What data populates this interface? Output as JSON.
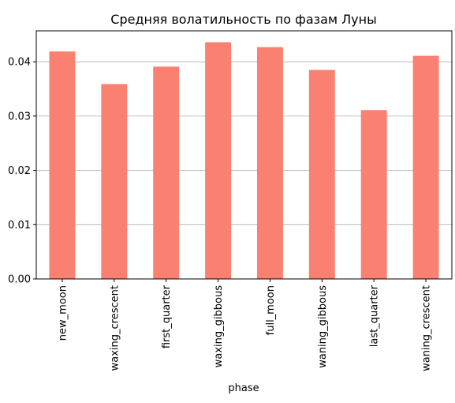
{
  "chart_data": {
    "type": "bar",
    "title": "Средняя волатильность по фазам Луны",
    "xlabel": "phase",
    "ylabel": "",
    "categories": [
      "new_moon",
      "waxing_crescent",
      "first_quarter",
      "waxing_gibbous",
      "full_moon",
      "waning_gibbous",
      "last_quarter",
      "waning_crescent"
    ],
    "values": [
      0.0419,
      0.0359,
      0.0391,
      0.0436,
      0.0427,
      0.0385,
      0.0311,
      0.0411
    ],
    "ylim": [
      0,
      0.0457
    ],
    "yticks": [
      0.0,
      0.01,
      0.02,
      0.03,
      0.04
    ],
    "ytick_labels": [
      "0.00",
      "0.01",
      "0.02",
      "0.03",
      "0.04"
    ],
    "grid": "y",
    "bar_color": "#fa8072"
  }
}
